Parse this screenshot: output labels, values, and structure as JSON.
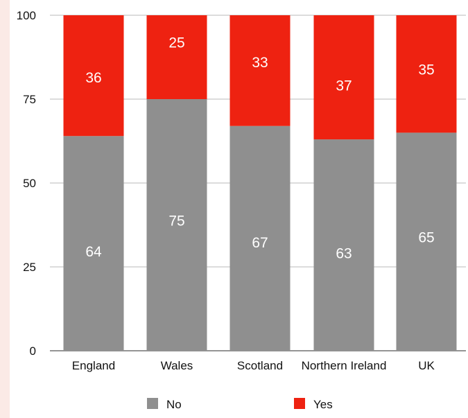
{
  "chart_data": {
    "type": "bar",
    "stacked": true,
    "categories": [
      "England",
      "Wales",
      "Scotland",
      "Northern Ireland",
      "UK"
    ],
    "series": [
      {
        "name": "No",
        "values": [
          64,
          75,
          67,
          63,
          65
        ],
        "color": "#8f8f8f"
      },
      {
        "name": "Yes",
        "values": [
          36,
          25,
          33,
          37,
          35
        ],
        "color": "#ee2211"
      }
    ],
    "ylim": [
      0,
      100
    ],
    "yticks": [
      "0",
      "25",
      "50",
      "75",
      "100"
    ],
    "grid": true,
    "legend_position": "bottom"
  },
  "colors": {
    "background": "#ffffff",
    "left_strip": "#fbeae6",
    "gridline": "#c8c8c8",
    "text": "#111111"
  }
}
